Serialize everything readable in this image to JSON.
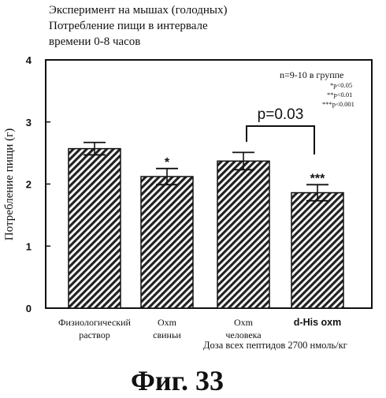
{
  "title_lines": [
    "Эксперимент на мышах (голодных)",
    "Потребление пищи в интервале",
    "времени 0-8 часов"
  ],
  "figure_caption": "Фиг. 33",
  "chart_data": {
    "type": "bar",
    "categories": [
      [
        "Физиологический",
        "раствор"
      ],
      [
        "Oxm",
        "свиньи"
      ],
      [
        "Oxm",
        "человека"
      ],
      [
        "d-His oxm"
      ]
    ],
    "values": [
      2.57,
      2.12,
      2.37,
      1.86
    ],
    "errors": [
      0.1,
      0.13,
      0.14,
      0.13
    ],
    "significance": [
      "",
      "*",
      "",
      "***"
    ],
    "ylabel": "Потребление пищи (г)",
    "xlabel": "Доза всех пептидов 2700 нмоль/кг",
    "ylim": [
      0,
      4
    ],
    "yticks": [
      "0",
      "1",
      "2",
      "3",
      "4"
    ],
    "legend_lines": [
      "n=9-10 в группе",
      "*p<0.05",
      "**p<0.01",
      "***p<0.001"
    ],
    "comparison": {
      "from": 2,
      "to": 3,
      "label": "p=0.03"
    },
    "bar_fill": "hatched",
    "colors": {
      "axis": "#111111",
      "hatch": "#222222",
      "background": "#ffffff"
    }
  }
}
